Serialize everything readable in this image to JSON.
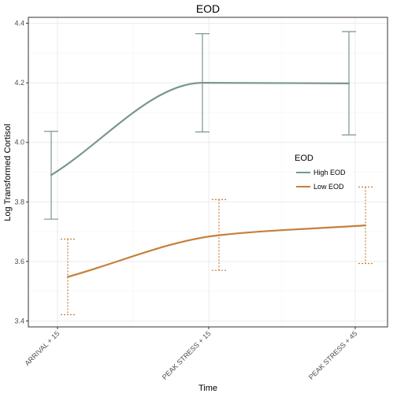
{
  "chart_data": {
    "type": "line",
    "title": "EOD",
    "xlabel": "Time",
    "ylabel": "Log Transformed Cortisol",
    "categories": [
      "ARRIVAL + 15",
      "PEAK STRESS + 15",
      "PEAK STRESS + 45"
    ],
    "ylim": [
      3.38,
      4.42
    ],
    "yticks": [
      "3.4",
      "3.6",
      "3.8",
      "4.0",
      "4.2",
      "4.4"
    ],
    "grid": true,
    "legend": {
      "title": "EOD",
      "placement": "right"
    },
    "series": [
      {
        "name": "High EOD",
        "color": "#7a9690",
        "line_style": "solid",
        "values": [
          3.89,
          4.2,
          4.198
        ],
        "lower": [
          3.742,
          4.035,
          4.025
        ],
        "upper": [
          4.037,
          4.365,
          4.372
        ]
      },
      {
        "name": "Low EOD",
        "color": "#c5803a",
        "line_style": "dotted",
        "values": [
          3.548,
          3.688,
          3.721
        ],
        "lower": [
          3.421,
          3.57,
          3.593
        ],
        "upper": [
          3.675,
          3.808,
          3.85
        ]
      }
    ]
  }
}
